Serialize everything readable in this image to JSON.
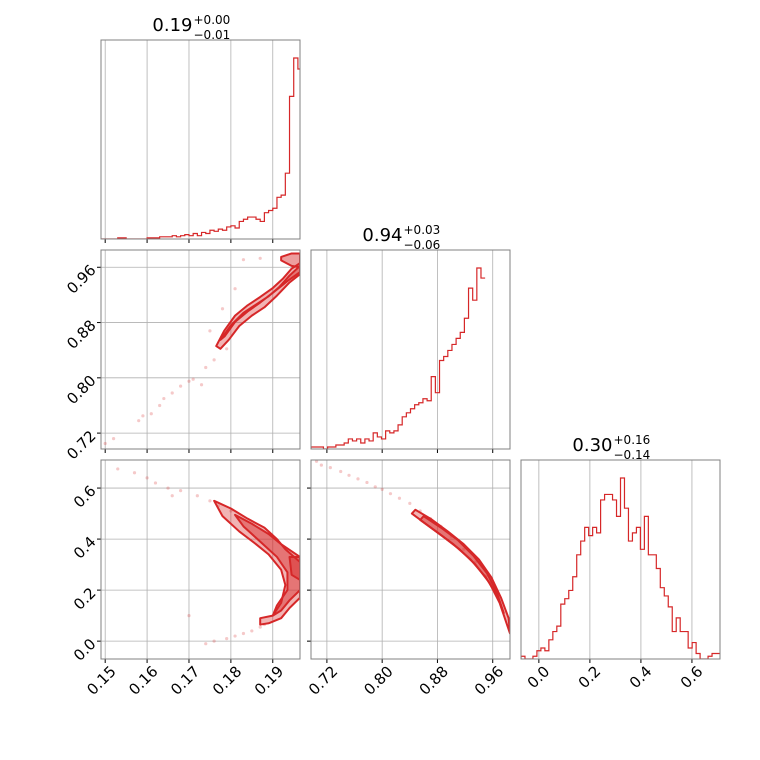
{
  "chart_data": {
    "type": "corner",
    "color": "#d62728",
    "grid": true,
    "parameters": [
      {
        "title": {
          "main": "0.19",
          "plus": "+0.00",
          "minus": "−0.01"
        },
        "range": [
          0.149,
          0.1965
        ],
        "ticks": [
          {
            "v": 0.15,
            "label": "0.15"
          },
          {
            "v": 0.16,
            "label": "0.16"
          },
          {
            "v": 0.17,
            "label": "0.17"
          },
          {
            "v": 0.18,
            "label": "0.18"
          },
          {
            "v": 0.19,
            "label": "0.19"
          }
        ]
      },
      {
        "title": {
          "main": "0.94",
          "plus": "+0.03",
          "minus": "−0.06"
        },
        "range": [
          0.697,
          0.985
        ],
        "ticks": [
          {
            "v": 0.72,
            "label": "0.72"
          },
          {
            "v": 0.8,
            "label": "0.80"
          },
          {
            "v": 0.88,
            "label": "0.88"
          },
          {
            "v": 0.96,
            "label": "0.96"
          }
        ]
      },
      {
        "title": {
          "main": "0.30",
          "plus": "+0.16",
          "minus": "−0.14"
        },
        "range": [
          -0.07,
          0.71
        ],
        "ticks": [
          {
            "v": 0.0,
            "label": "0.0"
          },
          {
            "v": 0.2,
            "label": "0.2"
          },
          {
            "v": 0.4,
            "label": "0.4"
          },
          {
            "v": 0.6,
            "label": "0.6"
          }
        ]
      }
    ],
    "histograms": [
      {
        "param": 0,
        "x_start": 0.149,
        "bin_width": 0.001,
        "counts": [
          0,
          0,
          0,
          0,
          1,
          1,
          0,
          0,
          0,
          0,
          0,
          1,
          1,
          1,
          2,
          2,
          2,
          3,
          2,
          3,
          4,
          3,
          5,
          3,
          6,
          5,
          8,
          7,
          9,
          8,
          11,
          12,
          10,
          16,
          18,
          20,
          20,
          18,
          16,
          24,
          26,
          28,
          38,
          40,
          60,
          130,
          165,
          155,
          100,
          80,
          80
        ]
      },
      {
        "param": 1,
        "x_start": 0.697,
        "bin_width": 0.006,
        "counts": [
          1,
          1,
          1,
          0,
          1,
          1,
          2,
          2,
          3,
          5,
          4,
          5,
          3,
          5,
          4,
          8,
          6,
          5,
          9,
          8,
          9,
          12,
          16,
          18,
          20,
          22,
          23,
          25,
          24,
          36,
          28,
          44,
          46,
          49,
          52,
          55,
          58,
          65,
          80,
          74,
          90,
          85
        ]
      },
      {
        "param": 2,
        "x_start": -0.07,
        "bin_width": 0.0156,
        "counts": [
          1,
          0,
          0,
          1,
          3,
          4,
          3,
          7,
          10,
          12,
          20,
          22,
          25,
          30,
          38,
          43,
          48,
          45,
          48,
          46,
          58,
          60,
          60,
          58,
          52,
          66,
          55,
          43,
          46,
          48,
          40,
          52,
          38,
          38,
          33,
          26,
          23,
          19,
          10,
          15,
          10,
          10,
          4,
          6,
          2,
          0,
          0,
          1,
          2,
          2
        ]
      }
    ],
    "scatter": [
      {
        "x_param": 0,
        "y_param": 1,
        "points": [
          [
            0.15,
            0.705
          ],
          [
            0.152,
            0.712
          ],
          [
            0.158,
            0.738
          ],
          [
            0.161,
            0.748
          ],
          [
            0.163,
            0.76
          ],
          [
            0.166,
            0.778
          ],
          [
            0.168,
            0.788
          ],
          [
            0.17,
            0.795
          ],
          [
            0.171,
            0.798
          ],
          [
            0.174,
            0.815
          ],
          [
            0.176,
            0.826
          ],
          [
            0.179,
            0.842
          ],
          [
            0.173,
            0.79
          ],
          [
            0.175,
            0.868
          ],
          [
            0.178,
            0.9
          ],
          [
            0.181,
            0.929
          ],
          [
            0.183,
            0.971
          ],
          [
            0.187,
            0.973
          ],
          [
            0.164,
            0.77
          ],
          [
            0.159,
            0.745
          ]
        ]
      },
      {
        "x_param": 0,
        "y_param": 2,
        "points": [
          [
            0.153,
            0.675
          ],
          [
            0.157,
            0.66
          ],
          [
            0.16,
            0.64
          ],
          [
            0.162,
            0.62
          ],
          [
            0.165,
            0.6
          ],
          [
            0.168,
            0.59
          ],
          [
            0.172,
            0.57
          ],
          [
            0.175,
            0.55
          ],
          [
            0.177,
            0.53
          ],
          [
            0.18,
            0.51
          ],
          [
            0.179,
            0.01
          ],
          [
            0.181,
            0.02
          ],
          [
            0.183,
            0.03
          ],
          [
            0.185,
            0.04
          ],
          [
            0.187,
            0.055
          ],
          [
            0.188,
            0.065
          ],
          [
            0.176,
            0.0
          ],
          [
            0.174,
            -0.01
          ],
          [
            0.17,
            0.1
          ],
          [
            0.166,
            0.57
          ]
        ]
      },
      {
        "x_param": 1,
        "y_param": 2,
        "points": [
          [
            0.705,
            0.705
          ],
          [
            0.712,
            0.69
          ],
          [
            0.725,
            0.68
          ],
          [
            0.74,
            0.665
          ],
          [
            0.752,
            0.65
          ],
          [
            0.765,
            0.636
          ],
          [
            0.778,
            0.622
          ],
          [
            0.79,
            0.605
          ],
          [
            0.8,
            0.595
          ],
          [
            0.812,
            0.578
          ],
          [
            0.825,
            0.56
          ],
          [
            0.84,
            0.54
          ],
          [
            0.855,
            0.51
          ],
          [
            0.87,
            0.48
          ],
          [
            0.885,
            0.45
          ],
          [
            0.9,
            0.41
          ],
          [
            0.918,
            0.36
          ],
          [
            0.935,
            0.31
          ],
          [
            0.95,
            0.255
          ],
          [
            0.965,
            0.19
          ]
        ]
      }
    ],
    "contours": [
      {
        "x_param": 0,
        "y_param": 1,
        "levels": [
          [
            [
              0.1765,
              0.846
            ],
            [
              0.1784,
              0.868
            ],
            [
              0.181,
              0.89
            ],
            [
              0.184,
              0.905
            ],
            [
              0.187,
              0.917
            ],
            [
              0.19,
              0.93
            ],
            [
              0.1925,
              0.944
            ],
            [
              0.1945,
              0.958
            ],
            [
              0.1965,
              0.966
            ],
            [
              0.1965,
              0.95
            ],
            [
              0.194,
              0.938
            ],
            [
              0.191,
              0.919
            ],
            [
              0.188,
              0.902
            ],
            [
              0.185,
              0.89
            ],
            [
              0.182,
              0.875
            ],
            [
              0.1795,
              0.855
            ],
            [
              0.1775,
              0.842
            ]
          ],
          [
            [
              0.1775,
              0.855
            ],
            [
              0.18,
              0.876
            ],
            [
              0.183,
              0.894
            ],
            [
              0.186,
              0.906
            ],
            [
              0.189,
              0.918
            ],
            [
              0.1915,
              0.931
            ],
            [
              0.194,
              0.948
            ],
            [
              0.1965,
              0.962
            ],
            [
              0.1965,
              0.953
            ],
            [
              0.1935,
              0.94
            ],
            [
              0.19,
              0.923
            ],
            [
              0.187,
              0.909
            ],
            [
              0.184,
              0.896
            ],
            [
              0.181,
              0.881
            ],
            [
              0.1785,
              0.86
            ]
          ],
          [
            [
              0.192,
              0.975
            ],
            [
              0.1945,
              0.98
            ],
            [
              0.1965,
              0.98
            ],
            [
              0.1965,
              0.96
            ],
            [
              0.1945,
              0.962
            ],
            [
              0.192,
              0.97
            ]
          ]
        ]
      },
      {
        "x_param": 0,
        "y_param": 2,
        "levels": [
          [
            [
              0.176,
              0.55
            ],
            [
              0.18,
              0.52
            ],
            [
              0.184,
              0.48
            ],
            [
              0.188,
              0.445
            ],
            [
              0.191,
              0.4
            ],
            [
              0.193,
              0.36
            ],
            [
              0.1965,
              0.31
            ],
            [
              0.1965,
              0.17
            ],
            [
              0.194,
              0.13
            ],
            [
              0.192,
              0.09
            ],
            [
              0.189,
              0.07
            ],
            [
              0.187,
              0.065
            ],
            [
              0.187,
              0.09
            ],
            [
              0.19,
              0.1
            ],
            [
              0.192,
              0.15
            ],
            [
              0.193,
              0.22
            ],
            [
              0.192,
              0.28
            ],
            [
              0.189,
              0.34
            ],
            [
              0.186,
              0.38
            ],
            [
              0.182,
              0.43
            ],
            [
              0.178,
              0.49
            ]
          ],
          [
            [
              0.181,
              0.495
            ],
            [
              0.185,
              0.46
            ],
            [
              0.189,
              0.42
            ],
            [
              0.192,
              0.38
            ],
            [
              0.1965,
              0.33
            ],
            [
              0.1965,
              0.2
            ],
            [
              0.194,
              0.16
            ],
            [
              0.192,
              0.12
            ],
            [
              0.19,
              0.1
            ],
            [
              0.191,
              0.14
            ],
            [
              0.1935,
              0.2
            ],
            [
              0.1935,
              0.27
            ],
            [
              0.191,
              0.33
            ],
            [
              0.187,
              0.39
            ],
            [
              0.183,
              0.45
            ]
          ],
          [
            [
              0.194,
              0.33
            ],
            [
              0.1965,
              0.33
            ],
            [
              0.1965,
              0.24
            ],
            [
              0.1945,
              0.26
            ]
          ]
        ]
      },
      {
        "x_param": 1,
        "y_param": 2,
        "levels": [
          [
            [
              0.848,
              0.515
            ],
            [
              0.87,
              0.48
            ],
            [
              0.895,
              0.43
            ],
            [
              0.918,
              0.38
            ],
            [
              0.94,
              0.32
            ],
            [
              0.958,
              0.25
            ],
            [
              0.972,
              0.17
            ],
            [
              0.983,
              0.09
            ],
            [
              0.985,
              0.03
            ],
            [
              0.98,
              0.07
            ],
            [
              0.97,
              0.15
            ],
            [
              0.955,
              0.23
            ],
            [
              0.935,
              0.3
            ],
            [
              0.912,
              0.36
            ],
            [
              0.888,
              0.41
            ],
            [
              0.863,
              0.46
            ],
            [
              0.843,
              0.5
            ]
          ],
          [
            [
              0.86,
              0.49
            ],
            [
              0.885,
              0.445
            ],
            [
              0.91,
              0.395
            ],
            [
              0.932,
              0.335
            ],
            [
              0.952,
              0.265
            ],
            [
              0.966,
              0.19
            ],
            [
              0.976,
              0.11
            ],
            [
              0.968,
              0.17
            ],
            [
              0.95,
              0.25
            ],
            [
              0.928,
              0.32
            ],
            [
              0.903,
              0.38
            ],
            [
              0.878,
              0.43
            ],
            [
              0.855,
              0.475
            ]
          ]
        ]
      }
    ]
  }
}
